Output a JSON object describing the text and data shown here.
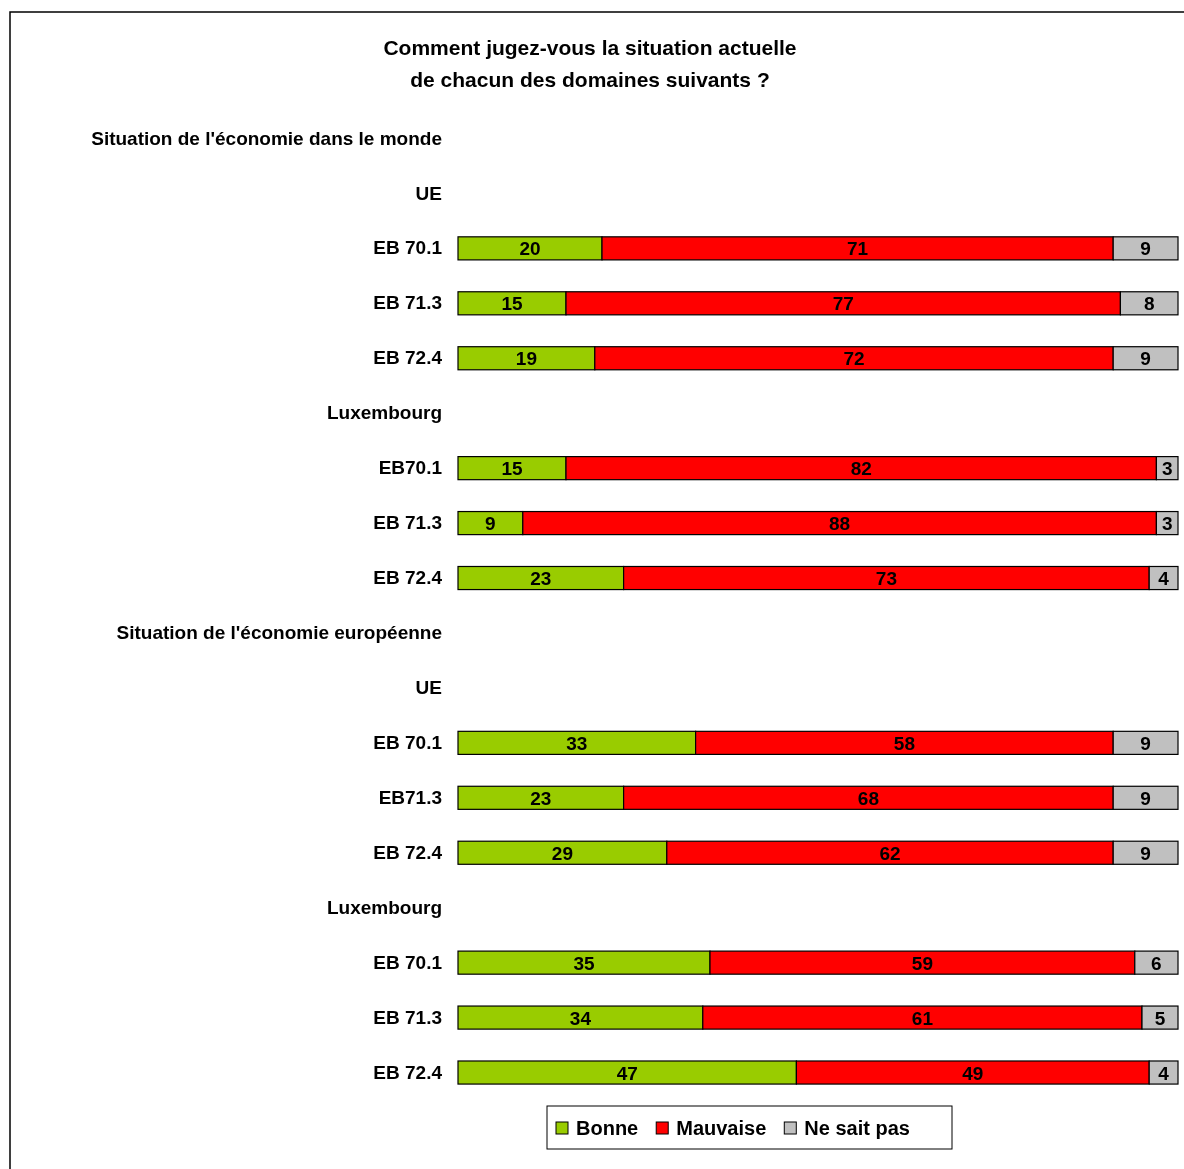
{
  "chart_data": {
    "type": "bar",
    "orientation": "horizontal",
    "stacked": true,
    "title": "Comment jugez-vous la situation actuelle\nde chacun des domaines suivants ?",
    "categories": [
      "Situation de l'économie dans le monde",
      "UE",
      "EB 70.1",
      "EB 71.3",
      "EB 72.4",
      "Luxembourg",
      "EB70.1",
      "EB 71.3",
      "EB 72.4",
      "Situation de l'économie européenne",
      "UE",
      "EB 70.1",
      "EB71.3",
      "EB 72.4",
      "Luxembourg",
      "EB 70.1",
      "EB 71.3",
      "EB 72.4"
    ],
    "series": [
      {
        "name": "Bonne",
        "color": "#99cc00",
        "values": [
          null,
          null,
          20,
          15,
          19,
          null,
          15,
          9,
          23,
          null,
          null,
          33,
          23,
          29,
          null,
          35,
          34,
          47
        ]
      },
      {
        "name": "Mauvaise",
        "color": "#ff0000",
        "values": [
          null,
          null,
          71,
          77,
          72,
          null,
          82,
          88,
          73,
          null,
          null,
          58,
          68,
          62,
          null,
          59,
          61,
          49
        ]
      },
      {
        "name": "Ne sait pas",
        "color": "#c0c0c0",
        "values": [
          null,
          null,
          9,
          8,
          9,
          null,
          3,
          3,
          4,
          null,
          null,
          9,
          9,
          9,
          null,
          6,
          5,
          4
        ]
      }
    ],
    "xlim": [
      0,
      100
    ],
    "tick_labels": "y",
    "data_labels": true,
    "legend": "bottom",
    "grid": false
  }
}
